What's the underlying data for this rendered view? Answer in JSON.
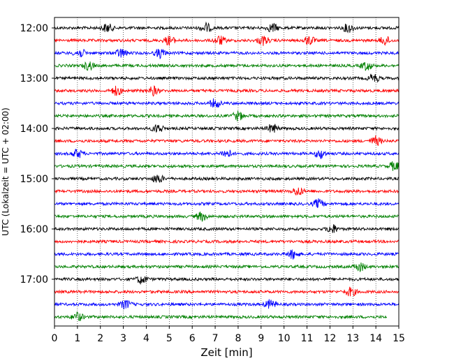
{
  "chart_data": {
    "type": "line",
    "xlabel": "Zeit  [min]",
    "ylabel": "UTC (Lokalzeit = UTC + 02:00)",
    "xlim": [
      0,
      15
    ],
    "x_ticks": [
      0,
      1,
      2,
      3,
      4,
      5,
      6,
      7,
      8,
      9,
      10,
      11,
      12,
      13,
      14,
      15
    ],
    "y_tick_labels": [
      "12:00",
      "13:00",
      "14:00",
      "15:00",
      "16:00",
      "17:00"
    ],
    "grid": "vertical dotted",
    "trace_colors": [
      "#000000",
      "#ff0000",
      "#0000ff",
      "#008000"
    ],
    "traces": [
      {
        "start": "12:00",
        "color": "#000000",
        "bursts": [
          2.3,
          6.6,
          9.5,
          12.8
        ]
      },
      {
        "start": "12:15",
        "color": "#ff0000",
        "bursts": [
          5.0,
          7.2,
          9.1,
          11.1,
          14.4
        ]
      },
      {
        "start": "12:30",
        "color": "#0000ff",
        "bursts": [
          1.1,
          2.9,
          4.6
        ]
      },
      {
        "start": "12:45",
        "color": "#008000",
        "bursts": [
          1.5,
          13.6
        ]
      },
      {
        "start": "13:00",
        "color": "#000000",
        "bursts": [
          13.9
        ]
      },
      {
        "start": "13:15",
        "color": "#ff0000",
        "bursts": [
          2.7,
          4.3
        ]
      },
      {
        "start": "13:30",
        "color": "#0000ff",
        "bursts": [
          7.0
        ]
      },
      {
        "start": "13:45",
        "color": "#008000",
        "bursts": [
          8.0
        ]
      },
      {
        "start": "14:00",
        "color": "#000000",
        "bursts": [
          4.5,
          9.5
        ]
      },
      {
        "start": "14:15",
        "color": "#ff0000",
        "bursts": [
          14.0
        ]
      },
      {
        "start": "14:30",
        "color": "#0000ff",
        "bursts": [
          1.0,
          7.5,
          11.6
        ]
      },
      {
        "start": "14:45",
        "color": "#008000",
        "bursts": [
          14.8
        ]
      },
      {
        "start": "15:00",
        "color": "#000000",
        "bursts": [
          4.5
        ]
      },
      {
        "start": "15:15",
        "color": "#ff0000",
        "bursts": [
          10.6
        ]
      },
      {
        "start": "15:30",
        "color": "#0000ff",
        "bursts": [
          11.5
        ]
      },
      {
        "start": "15:45",
        "color": "#008000",
        "bursts": [
          6.4
        ]
      },
      {
        "start": "16:00",
        "color": "#000000",
        "bursts": [
          12.1
        ]
      },
      {
        "start": "16:15",
        "color": "#ff0000",
        "bursts": []
      },
      {
        "start": "16:30",
        "color": "#0000ff",
        "bursts": [
          10.4
        ]
      },
      {
        "start": "16:45",
        "color": "#008000",
        "bursts": [
          13.3
        ]
      },
      {
        "start": "17:00",
        "color": "#000000",
        "bursts": [
          3.8
        ]
      },
      {
        "start": "17:15",
        "color": "#ff0000",
        "bursts": [
          12.9
        ]
      },
      {
        "start": "17:30",
        "color": "#0000ff",
        "bursts": [
          3.1,
          9.4
        ]
      },
      {
        "start": "17:45",
        "color": "#008000",
        "bursts": [
          1.0
        ],
        "end_min": 14.5
      }
    ]
  }
}
